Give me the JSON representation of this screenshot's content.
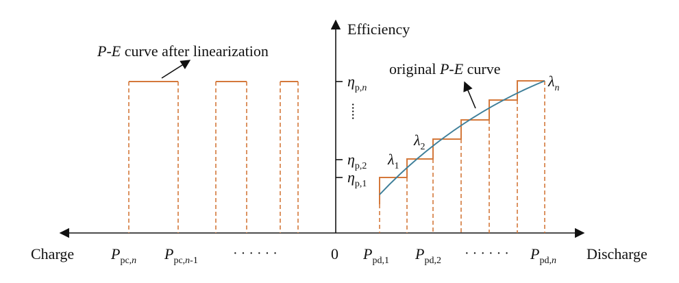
{
  "axes": {
    "y_label": "Efficiency",
    "x_left_label": "Charge",
    "x_right_label": "Discharge",
    "origin_label": "0"
  },
  "annotations": {
    "linearized_prefix": "P",
    "linearized_dash": "-",
    "linearized_E": "E",
    "linearized_suffix": " curve after linearization",
    "original_prefix": "original ",
    "original_P": "P",
    "original_dash": "-",
    "original_E": "E",
    "original_suffix": " curve"
  },
  "y_ticks": [
    {
      "main": "η",
      "sub": "p,n",
      "sub_plain": "p,",
      "sub_italic": "n"
    },
    {
      "main": "η",
      "sub": "p,2",
      "sub_plain": "p,2",
      "sub_italic": ""
    },
    {
      "main": "η",
      "sub": "p,1",
      "sub_plain": "p,1",
      "sub_italic": ""
    }
  ],
  "y_ellipsis": ".....",
  "x_ticks_left": [
    {
      "main": "P",
      "sub_plain": "pc,",
      "sub_italic": "n",
      "sub_tail": ""
    },
    {
      "main": "P",
      "sub_plain": "pc,",
      "sub_italic": "n",
      "sub_tail": "-1"
    }
  ],
  "x_ticks_right": [
    {
      "main": "P",
      "sub_plain": "pd,1",
      "sub_italic": "",
      "sub_tail": ""
    },
    {
      "main": "P",
      "sub_plain": "pd,2",
      "sub_italic": "",
      "sub_tail": ""
    },
    {
      "main": "P",
      "sub_plain": "pd,",
      "sub_italic": "n",
      "sub_tail": ""
    }
  ],
  "x_ellipsis": "· · · · · ·",
  "lambda_labels": [
    {
      "main": "λ",
      "sub": "1"
    },
    {
      "main": "λ",
      "sub": "2"
    },
    {
      "main": "λ",
      "sub": "n"
    }
  ],
  "colors": {
    "step": "#d4783a",
    "curve": "#3f7f99",
    "axis": "#111111"
  }
}
